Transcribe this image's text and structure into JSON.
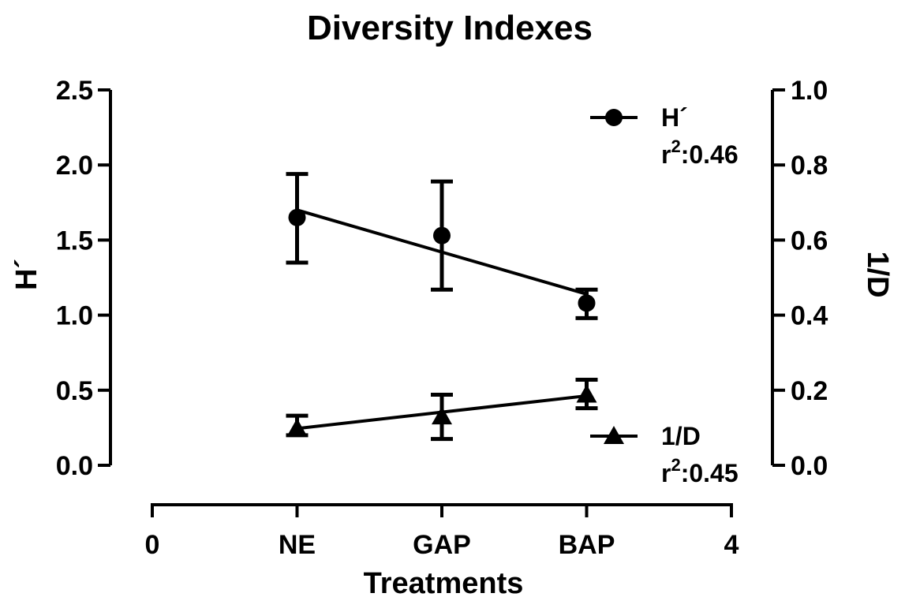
{
  "chart_data": {
    "type": "scatter",
    "title": "Diversity Indexes",
    "xlabel": "Treatments",
    "ylabel_left": "H´",
    "ylabel_right": "1/D",
    "x": {
      "range": [
        0,
        4
      ],
      "ticks": [
        {
          "value": 0,
          "label": "0"
        },
        {
          "value": 1,
          "label": "NE"
        },
        {
          "value": 2,
          "label": "GAP"
        },
        {
          "value": 3,
          "label": "BAP"
        },
        {
          "value": 4,
          "label": "4"
        }
      ]
    },
    "y_left": {
      "range": [
        0,
        2.5
      ],
      "ticks": [
        "0.0",
        "0.5",
        "1.0",
        "1.5",
        "2.0",
        "2.5"
      ]
    },
    "y_right": {
      "range": [
        0,
        1.0
      ],
      "ticks": [
        "0.0",
        "0.2",
        "0.4",
        "0.6",
        "0.8",
        "1.0"
      ]
    },
    "series": [
      {
        "name": "H´",
        "axis": "left",
        "marker": "circle",
        "r2_label": "r",
        "r2_sup": "2",
        "r2_value": ":0.46",
        "points": [
          {
            "x": 1,
            "y": 1.65,
            "lo": 1.35,
            "hi": 1.94
          },
          {
            "x": 2,
            "y": 1.53,
            "lo": 1.17,
            "hi": 1.89
          },
          {
            "x": 3,
            "y": 1.08,
            "lo": 0.98,
            "hi": 1.17
          }
        ],
        "fit": {
          "x0": 1,
          "y0": 1.7,
          "x1": 3,
          "y1": 1.14
        }
      },
      {
        "name": "1/D",
        "axis": "right",
        "marker": "triangle",
        "r2_label": "r",
        "r2_sup": "2",
        "r2_value": ":0.45",
        "points": [
          {
            "x": 1,
            "y": 0.098,
            "lo": 0.08,
            "hi": 0.132
          },
          {
            "x": 2,
            "y": 0.13,
            "lo": 0.07,
            "hi": 0.188
          },
          {
            "x": 3,
            "y": 0.188,
            "lo": 0.152,
            "hi": 0.228
          }
        ],
        "fit": {
          "x0": 1,
          "y0": 0.098,
          "x1": 3,
          "y1": 0.185
        }
      }
    ],
    "legend": "inside-right"
  }
}
